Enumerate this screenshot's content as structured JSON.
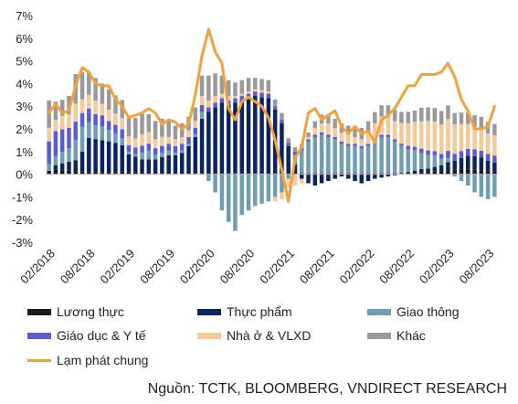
{
  "chart_data": {
    "type": "bar",
    "stacked": true,
    "y_unit": "%",
    "ylim": [
      -3,
      7
    ],
    "yticks": [
      "7%",
      "6%",
      "5%",
      "4%",
      "3%",
      "2%",
      "1%",
      "0%",
      "-1%",
      "-2%",
      "-3%"
    ],
    "xtick_labels": [
      "02/2018",
      "08/2018",
      "02/2019",
      "08/2019",
      "02/2020",
      "08/2020",
      "02/2021",
      "08/2021",
      "02/2022",
      "08/2022",
      "02/2023",
      "08/2023"
    ],
    "xtick_months": [
      1,
      7,
      13,
      19,
      25,
      31,
      37,
      43,
      49,
      55,
      61,
      67
    ],
    "x_start": "01/2018",
    "x_end": "08/2023",
    "series": [
      {
        "name": "Lương thực",
        "color": "#1a1a1a",
        "values": [
          0.15,
          0.2,
          0.18,
          0.15,
          0.12,
          0.1,
          0.1,
          0.1,
          0.1,
          0.1,
          0.08,
          0.08,
          0.08,
          0.08,
          0.06,
          0.05,
          0.05,
          0.05,
          0.04,
          0.04,
          0.04,
          0.04,
          0.05,
          0.05,
          0.05,
          0.05,
          0.05,
          0.05,
          0.05,
          0.05,
          0.05,
          0.05,
          0.05,
          0.05,
          0.05,
          0.05,
          0.04,
          0.04,
          0.04,
          0.04,
          0.04,
          0.04,
          0.04,
          0.04,
          0.04,
          0.04,
          0.04,
          0.04,
          0.04,
          0.04,
          0.04,
          0.04,
          0.04,
          0.05,
          0.05,
          0.06,
          0.08,
          0.1,
          0.12,
          0.14,
          0.18,
          0.2,
          0.22,
          0.22,
          0.2,
          0.18,
          0.15,
          0.12
        ]
      },
      {
        "name": "Thực phẩm",
        "color": "#0b2460",
        "values": [
          0.0,
          0.2,
          0.3,
          0.4,
          0.5,
          0.9,
          1.5,
          1.45,
          1.4,
          1.35,
          1.3,
          1.2,
          0.8,
          0.7,
          0.6,
          0.6,
          0.6,
          0.7,
          0.8,
          0.8,
          0.9,
          1.2,
          1.6,
          2.4,
          2.7,
          2.9,
          3.1,
          3.0,
          3.1,
          3.2,
          3.3,
          3.4,
          3.35,
          3.3,
          2.8,
          2.2,
          1.2,
          0.4,
          -0.2,
          -0.4,
          -0.5,
          -0.4,
          -0.3,
          -0.2,
          -0.1,
          -0.2,
          -0.3,
          -0.4,
          -0.3,
          -0.2,
          -0.15,
          -0.1,
          -0.05,
          0.0,
          0.05,
          0.1,
          0.15,
          0.15,
          0.2,
          0.25,
          0.35,
          0.4,
          0.5,
          0.6,
          0.6,
          0.55,
          0.45,
          0.4
        ]
      },
      {
        "name": "Giao thông",
        "color": "#6f9eb3",
        "values": [
          0.3,
          0.4,
          0.5,
          0.6,
          0.9,
          1.1,
          0.7,
          0.6,
          0.6,
          0.5,
          0.4,
          0.3,
          0.1,
          0.1,
          0.3,
          0.4,
          0.2,
          0.2,
          0.2,
          0.1,
          0.1,
          0.1,
          0.1,
          0.3,
          -0.3,
          -0.8,
          -1.6,
          -2.1,
          -2.5,
          -1.8,
          -1.6,
          -1.4,
          -1.3,
          -1.2,
          -1.0,
          -0.8,
          -0.2,
          0.4,
          1.0,
          1.4,
          1.6,
          1.7,
          1.6,
          1.5,
          1.3,
          1.2,
          1.2,
          1.1,
          1.2,
          1.4,
          1.6,
          1.6,
          1.4,
          1.2,
          1.0,
          0.9,
          0.7,
          0.6,
          0.5,
          0.3,
          0.2,
          -0.1,
          -0.3,
          -0.5,
          -0.8,
          -1.0,
          -1.1,
          -1.0
        ]
      },
      {
        "name": "Giáo dục & Y tế",
        "color": "#5b5bd6",
        "values": [
          1.0,
          1.1,
          1.0,
          0.9,
          0.8,
          0.6,
          0.6,
          0.5,
          0.5,
          0.4,
          0.4,
          0.4,
          0.3,
          0.3,
          0.3,
          0.3,
          0.3,
          0.3,
          0.3,
          0.3,
          0.3,
          0.3,
          0.3,
          0.3,
          0.2,
          0.2,
          0.2,
          0.2,
          0.2,
          0.2,
          0.2,
          0.2,
          0.2,
          0.2,
          0.15,
          0.15,
          0.15,
          0.15,
          0.1,
          0.1,
          0.1,
          0.1,
          0.1,
          0.1,
          0.1,
          0.1,
          0.1,
          0.1,
          0.1,
          0.1,
          0.1,
          0.1,
          0.1,
          0.1,
          0.15,
          0.15,
          0.2,
          0.2,
          0.2,
          0.2,
          0.3,
          0.3,
          0.3,
          0.3,
          0.3,
          0.3,
          0.3,
          0.3
        ]
      },
      {
        "name": "Nhà ở & VLXD",
        "color": "#f7c998",
        "values": [
          0.6,
          0.5,
          0.6,
          0.6,
          0.8,
          0.6,
          0.6,
          0.6,
          0.5,
          0.5,
          0.5,
          0.5,
          0.4,
          0.4,
          0.5,
          0.5,
          0.4,
          0.4,
          0.3,
          0.3,
          0.3,
          0.3,
          0.3,
          0.4,
          0.3,
          0.3,
          0.2,
          0.2,
          0.1,
          0.1,
          0.1,
          0.1,
          0.1,
          0.1,
          -0.2,
          -0.3,
          -0.4,
          -0.5,
          -0.2,
          0.1,
          0.3,
          0.4,
          0.5,
          0.4,
          0.4,
          0.4,
          0.3,
          0.3,
          0.5,
          0.7,
          0.8,
          0.8,
          0.8,
          0.9,
          1.0,
          1.1,
          1.2,
          1.3,
          1.3,
          1.3,
          1.4,
          1.3,
          1.2,
          1.1,
          1.0,
          1.0,
          0.9,
          0.9
        ]
      },
      {
        "name": "Khác",
        "color": "#9a9a9a",
        "values": [
          1.2,
          0.8,
          0.7,
          0.8,
          1.3,
          1.2,
          1.0,
          1.0,
          0.9,
          0.9,
          0.8,
          0.8,
          0.8,
          0.9,
          0.9,
          0.8,
          0.8,
          0.8,
          0.7,
          0.6,
          0.6,
          0.6,
          0.6,
          0.9,
          1.1,
          1.0,
          0.8,
          0.7,
          0.6,
          0.6,
          0.6,
          0.5,
          0.5,
          0.5,
          0.3,
          0.3,
          0.2,
          0.2,
          0.2,
          0.2,
          0.3,
          0.4,
          0.4,
          0.4,
          0.4,
          0.4,
          0.5,
          0.5,
          0.5,
          0.5,
          0.5,
          0.5,
          0.5,
          0.5,
          0.5,
          0.5,
          0.6,
          0.6,
          0.6,
          0.6,
          0.6,
          0.5,
          0.5,
          0.5,
          0.5,
          0.5,
          0.5,
          0.5
        ]
      },
      {
        "name": "Lạm phát chung",
        "color": "#f2a23c",
        "type": "line",
        "values": [
          2.7,
          3.1,
          2.7,
          2.8,
          3.9,
          4.7,
          4.5,
          4.0,
          3.9,
          3.9,
          3.3,
          3.0,
          2.5,
          2.6,
          2.7,
          2.9,
          2.7,
          2.2,
          2.4,
          2.3,
          2.0,
          2.2,
          3.5,
          5.2,
          6.4,
          5.4,
          4.9,
          2.9,
          2.4,
          3.2,
          3.4,
          3.2,
          3.0,
          2.5,
          1.5,
          0.2,
          -1.2,
          0.7,
          1.2,
          2.7,
          2.9,
          2.4,
          2.6,
          2.8,
          2.1,
          1.8,
          2.1,
          1.8,
          1.9,
          1.4,
          2.4,
          2.6,
          2.9,
          3.4,
          3.9,
          3.9,
          4.4,
          4.4,
          4.4,
          4.5,
          4.9,
          4.3,
          3.3,
          2.8,
          2.0,
          2.0,
          2.1,
          3.0
        ]
      }
    ]
  },
  "legend": {
    "items": [
      {
        "label": "Lương thực",
        "color": "#1a1a1a"
      },
      {
        "label": "Thực phẩm",
        "color": "#0b2460"
      },
      {
        "label": "Giao thông",
        "color": "#6f9eb3"
      },
      {
        "label": "Giáo dục & Y tế",
        "color": "#5b5bd6"
      },
      {
        "label": "Nhà ở & VLXD",
        "color": "#f7c998"
      },
      {
        "label": "Khác",
        "color": "#9a9a9a"
      },
      {
        "label": "Lạm phát chung",
        "color": "#f2a23c"
      }
    ]
  },
  "source": "Nguồn: TCTK, BLOOMBERG, VNDIRECT RESEARCH"
}
